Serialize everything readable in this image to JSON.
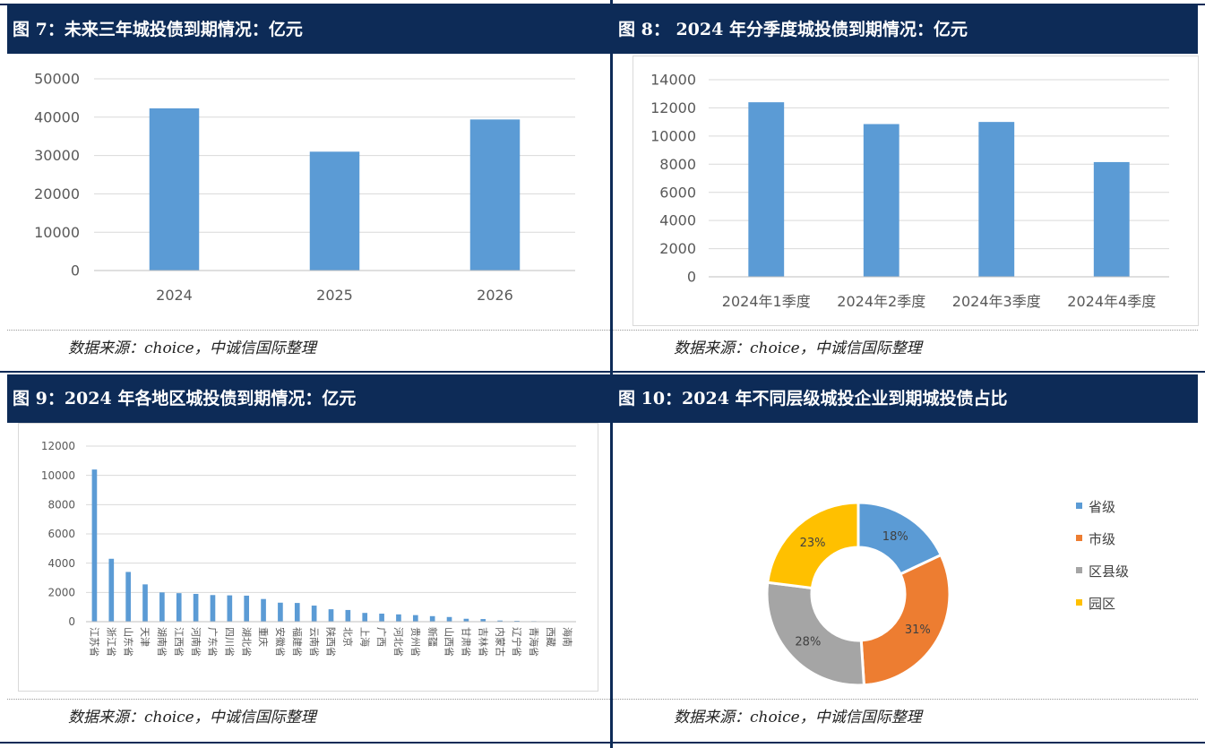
{
  "panels": {
    "fig7": {
      "title": "图 7：未来三年城投债到期情况：亿元",
      "source": "数据来源：choice，中诚信国际整理"
    },
    "fig8": {
      "title": "图 8： 2024 年分季度城投债到期情况：亿元",
      "source": "数据来源：choice，中诚信国际整理"
    },
    "fig9": {
      "title": "图 9：2024 年各地区城投债到期情况：亿元",
      "source": "数据来源：choice，中诚信国际整理"
    },
    "fig10": {
      "title": "图 10：2024 年不同层级城投企业到期城投债占比",
      "source": "数据来源：choice，中诚信国际整理"
    }
  },
  "colors": {
    "bar": "#5b9bd5",
    "header": "#0d2b57",
    "grid": "#d9d9d9",
    "axis": "#595959"
  },
  "chart_data": [
    {
      "id": "fig7",
      "type": "bar",
      "categories": [
        "2024",
        "2025",
        "2026"
      ],
      "values": [
        42300,
        31000,
        39400
      ],
      "ylim": [
        0,
        50000
      ],
      "yticks": [
        0,
        10000,
        20000,
        30000,
        40000,
        50000
      ],
      "grid": true
    },
    {
      "id": "fig8",
      "type": "bar",
      "categories": [
        "2024年1季度",
        "2024年2季度",
        "2024年3季度",
        "2024年4季度"
      ],
      "values": [
        12400,
        10850,
        11000,
        8150
      ],
      "ylim": [
        0,
        14000
      ],
      "yticks": [
        0,
        2000,
        4000,
        6000,
        8000,
        10000,
        12000,
        14000
      ],
      "grid": true
    },
    {
      "id": "fig9",
      "type": "bar",
      "categories": [
        "江苏省",
        "浙江省",
        "山东省",
        "天津",
        "湖南省",
        "江西省",
        "河南省",
        "广东省",
        "四川省",
        "湖北省",
        "重庆",
        "安徽省",
        "福建省",
        "云南省",
        "陕西省",
        "北京",
        "上海",
        "广西",
        "河北省",
        "贵州省",
        "新疆",
        "山西省",
        "甘肃省",
        "吉林省",
        "内蒙古",
        "辽宁省",
        "青海省",
        "西藏",
        "海南"
      ],
      "values": [
        10400,
        4300,
        3400,
        2550,
        2000,
        1950,
        1900,
        1820,
        1800,
        1780,
        1550,
        1300,
        1280,
        1100,
        850,
        800,
        600,
        550,
        500,
        450,
        380,
        320,
        200,
        180,
        80,
        60,
        40,
        20,
        10
      ],
      "ylim": [
        0,
        12000
      ],
      "yticks": [
        0,
        2000,
        4000,
        6000,
        8000,
        10000,
        12000
      ],
      "grid": true
    },
    {
      "id": "fig10",
      "type": "pie",
      "donut": true,
      "labels": [
        "省级",
        "市级",
        "区县级",
        "园区"
      ],
      "values": [
        18,
        31,
        28,
        23
      ],
      "value_labels": [
        "18%",
        "31%",
        "28%",
        "23%"
      ],
      "colors": [
        "#5b9bd5",
        "#ed7d31",
        "#a5a5a5",
        "#ffc000"
      ],
      "legend": "right"
    }
  ]
}
